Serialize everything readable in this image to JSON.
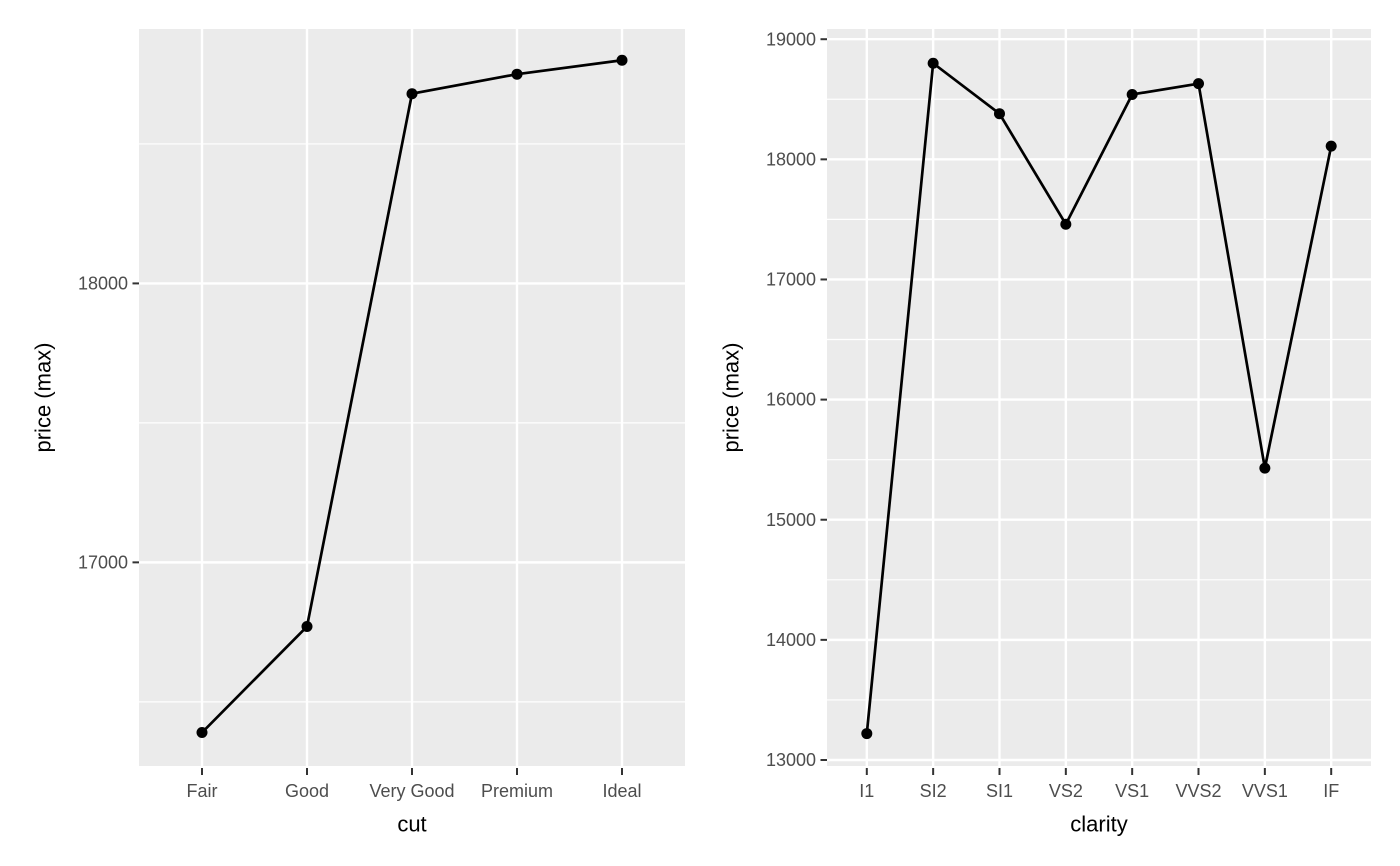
{
  "figure": {
    "description": "Two side-by-side ggplot2-style line charts of diamond price maxima"
  },
  "colors": {
    "figure_background": "#FFFFFF",
    "panel_background": "#EBEBEB",
    "gridline_major": "#FFFFFF",
    "gridline_minor": "#FFFFFF",
    "line": "#000000",
    "point": "#000000",
    "tick_label": "#4D4D4D",
    "tick_mark": "#333333",
    "axis_title": "#000000"
  },
  "chart_data": [
    {
      "type": "line",
      "title": "",
      "xlabel": "cut",
      "ylabel": "price (max)",
      "categories": [
        "Fair",
        "Good",
        "Very Good",
        "Premium",
        "Ideal"
      ],
      "values": [
        16390,
        16770,
        18680,
        18750,
        18800
      ],
      "y_ticks": [
        17000,
        18000
      ],
      "y_tick_labels": [
        "17000",
        "18000"
      ],
      "y_minor_step": 500,
      "ylim": [
        16270,
        18912
      ],
      "grid": true,
      "legend": "none",
      "point_marker": "filled-circle"
    },
    {
      "type": "line",
      "title": "",
      "xlabel": "clarity",
      "ylabel": "price (max)",
      "categories": [
        "I1",
        "SI2",
        "SI1",
        "VS2",
        "VS1",
        "VVS2",
        "VVS1",
        "IF"
      ],
      "values": [
        13220,
        18800,
        18380,
        17460,
        18540,
        18630,
        15430,
        18110
      ],
      "y_ticks": [
        13000,
        14000,
        15000,
        16000,
        17000,
        18000,
        19000
      ],
      "y_tick_labels": [
        "13000",
        "14000",
        "15000",
        "16000",
        "17000",
        "18000",
        "19000"
      ],
      "y_minor_step": 500,
      "ylim": [
        12950,
        19085
      ],
      "grid": true,
      "legend": "none",
      "point_marker": "filled-circle"
    }
  ]
}
